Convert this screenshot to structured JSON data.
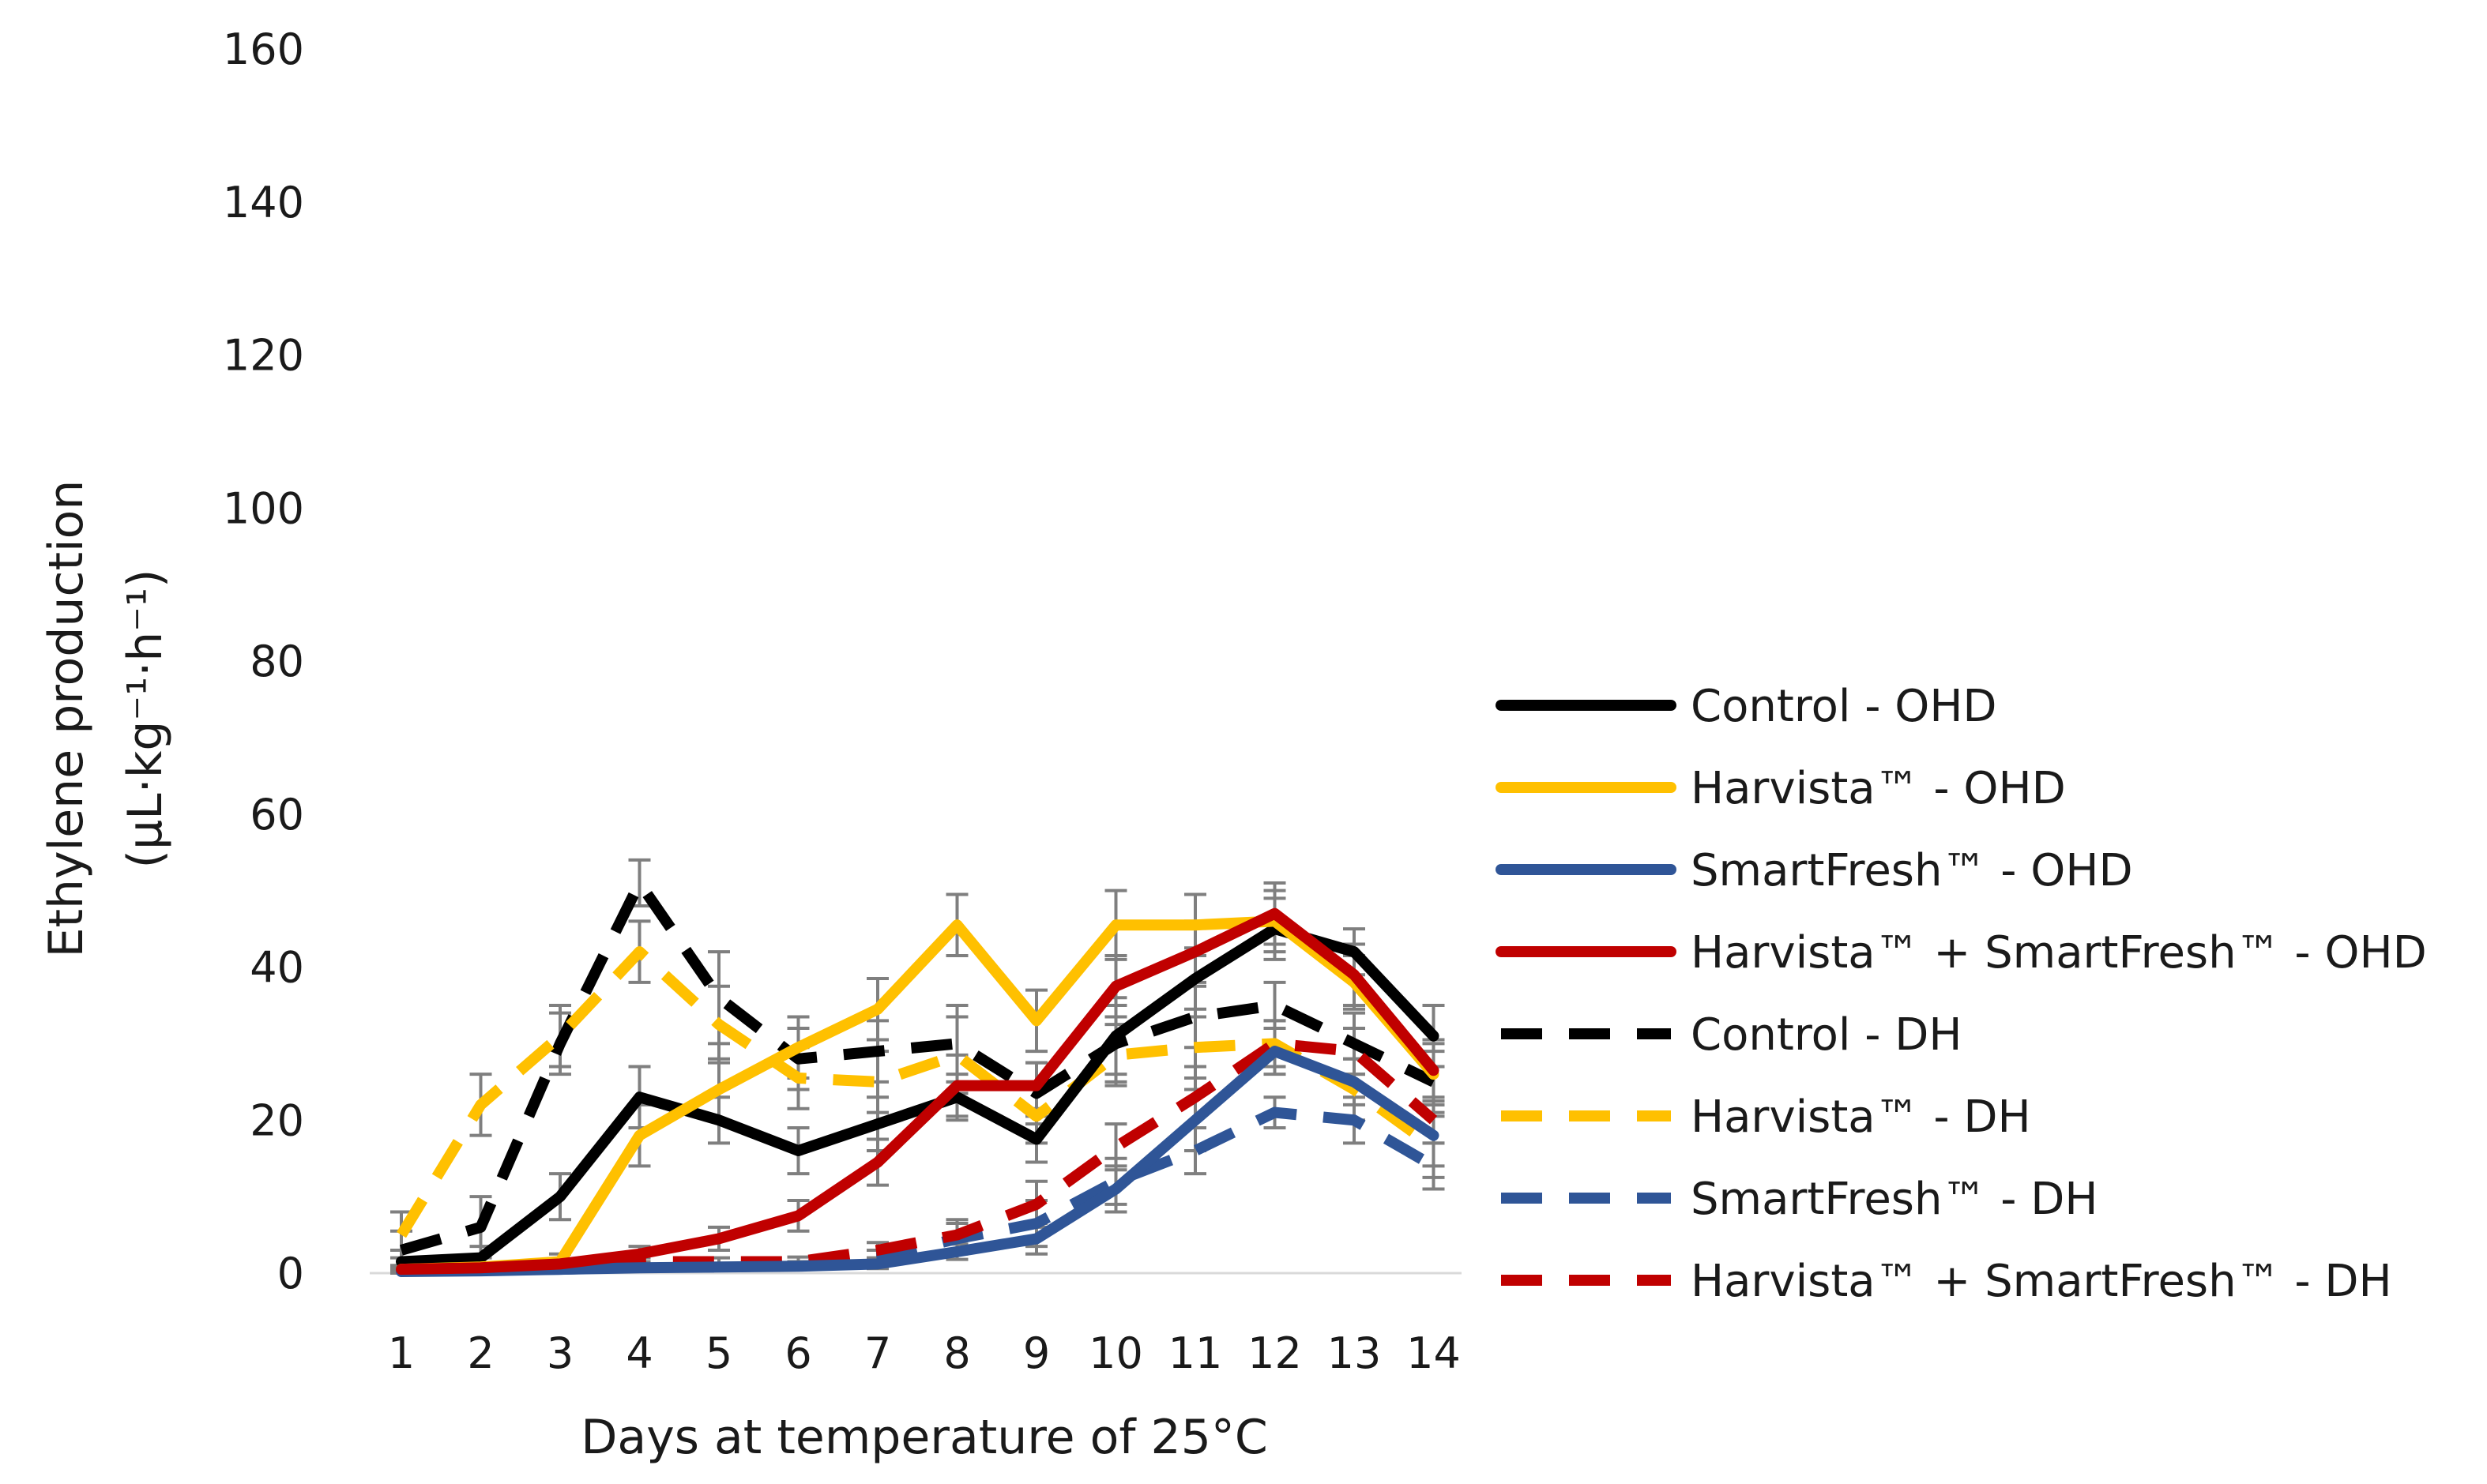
{
  "chart_data": {
    "type": "line",
    "title": "",
    "xlabel": "Days at temperature of 25°C",
    "ylabel": "Ethylene production",
    "ylabel_units": "(μL·kg⁻¹·h⁻¹)",
    "x": [
      1,
      2,
      3,
      4,
      5,
      6,
      7,
      8,
      9,
      10,
      11,
      12,
      13,
      14
    ],
    "xticks": [
      "1",
      "2",
      "3",
      "4",
      "5",
      "6",
      "7",
      "8",
      "9",
      "10",
      "11",
      "12",
      "13",
      "14"
    ],
    "ylim": [
      0,
      160
    ],
    "yticks": [
      "0",
      "20",
      "40",
      "60",
      "80",
      "100",
      "120",
      "140",
      "160"
    ],
    "grid": false,
    "legend_position": "right",
    "error_bars": true,
    "series": [
      {
        "name": "Control - OHD",
        "color": "#000000",
        "dash": "solid",
        "values": [
          1.5,
          2,
          10,
          23,
          20,
          16,
          19.5,
          23,
          17.5,
          31,
          38.5,
          45,
          42,
          31
        ],
        "errors": [
          1.5,
          1.5,
          3,
          4,
          3,
          3,
          3.5,
          3,
          3,
          5,
          4,
          4,
          3,
          4
        ]
      },
      {
        "name": "Harvista™ - OHD",
        "color": "#FFC000",
        "dash": "solid",
        "values": [
          0.5,
          0.8,
          1.5,
          18,
          24,
          29.5,
          34.5,
          45.5,
          33,
          45.5,
          45.5,
          46,
          38,
          26
        ],
        "errors": [
          0.5,
          0.5,
          1,
          4,
          4,
          4,
          4,
          4,
          4,
          4.5,
          4,
          4,
          3.5,
          4
        ]
      },
      {
        "name": "SmartFresh™ - OHD",
        "color": "#2F5597",
        "dash": "solid",
        "values": [
          0.2,
          0.3,
          0.5,
          0.7,
          0.8,
          0.9,
          1.2,
          2.8,
          4.5,
          11,
          20,
          29,
          25,
          18
        ],
        "errors": [
          0.2,
          0.2,
          0.3,
          0.3,
          0.3,
          0.4,
          0.6,
          1,
          2,
          3,
          4,
          3,
          3,
          4
        ]
      },
      {
        "name": "Harvista™ + SmartFresh™ - OHD",
        "color": "#C00000",
        "dash": "solid",
        "values": [
          0.5,
          0.7,
          1.2,
          2.5,
          4.5,
          7.5,
          14.5,
          24.5,
          24.5,
          37.5,
          42,
          47,
          39,
          26.5
        ],
        "errors": [
          0.5,
          0.5,
          0.6,
          1,
          1.5,
          2,
          3,
          4,
          3,
          4,
          4,
          4,
          4,
          4
        ]
      },
      {
        "name": "Control - DH",
        "color": "#000000",
        "dash": "dashed",
        "values": [
          3,
          6,
          30,
          51,
          36,
          28,
          29,
          30,
          23.5,
          30,
          33.5,
          35,
          30,
          25
        ],
        "errors": [
          2.5,
          4,
          4,
          3,
          6,
          4,
          4,
          5,
          4,
          5,
          4,
          3,
          4,
          4
        ]
      },
      {
        "name": "Harvista™ - DH",
        "color": "#FFC000",
        "dash": "dashed",
        "values": [
          5,
          22,
          31,
          42,
          32.5,
          25.5,
          25,
          28.5,
          20.5,
          28.5,
          29.5,
          30,
          24,
          16.5
        ],
        "errors": [
          3,
          4,
          4,
          4,
          5,
          4,
          4,
          5,
          3.5,
          4,
          4,
          3,
          4,
          4
        ]
      },
      {
        "name": "SmartFresh™ - DH",
        "color": "#2F5597",
        "dash": "dashed",
        "values": [
          0.3,
          0.4,
          0.5,
          0.8,
          0.8,
          1,
          2,
          4.5,
          6.5,
          12,
          16,
          21,
          20,
          14
        ],
        "errors": [
          0.3,
          0.3,
          0.3,
          0.4,
          0.4,
          0.5,
          1,
          2,
          3,
          3,
          3,
          2,
          3,
          3
        ]
      },
      {
        "name": "Harvista™ + SmartFresh™ - DH",
        "color": "#C00000",
        "dash": "dashed",
        "values": [
          0.5,
          0.8,
          1,
          1.5,
          1.5,
          1.5,
          3,
          5,
          9,
          16.5,
          23,
          30,
          29,
          20
        ],
        "errors": [
          0.4,
          0.4,
          0.5,
          0.5,
          0.5,
          0.6,
          1,
          2,
          3,
          3,
          4,
          3,
          3,
          3
        ]
      }
    ]
  }
}
